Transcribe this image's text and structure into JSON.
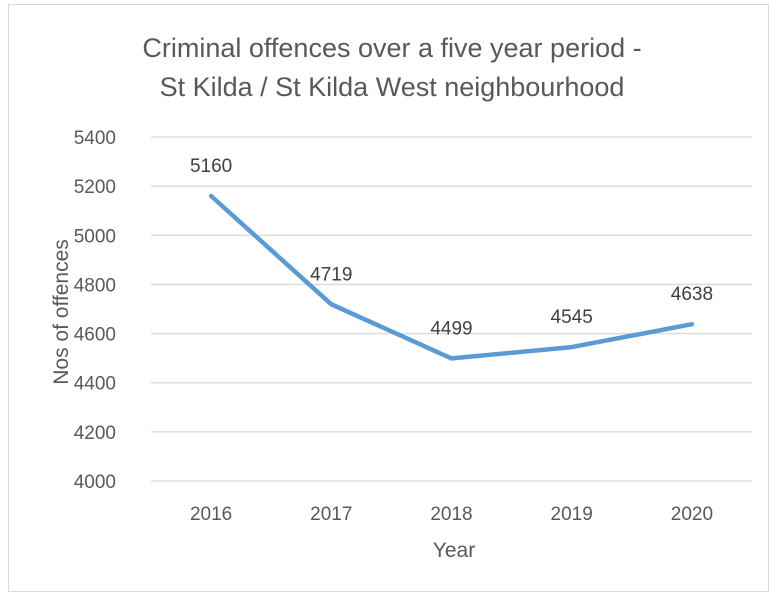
{
  "chart_data": {
    "type": "line",
    "title": "Criminal offences over a five year period - St Kilda / St Kilda West neighbourhood",
    "title_lines": [
      "Criminal offences over a five year period -",
      "St Kilda / St Kilda West neighbourhood"
    ],
    "xlabel": "Year",
    "ylabel": "Nos of offences",
    "categories": [
      "2016",
      "2017",
      "2018",
      "2019",
      "2020"
    ],
    "series": [
      {
        "values": [
          5160,
          4719,
          4499,
          4545,
          4638
        ],
        "color": "#5b9bd5"
      }
    ],
    "ylim": [
      4000,
      5400
    ],
    "y_ticks": [
      4000,
      4200,
      4400,
      4600,
      4800,
      5000,
      5200,
      5400
    ],
    "grid": true,
    "legend": "none",
    "data_labels": true,
    "colors": {
      "line": "#5b9bd5",
      "grid": "#d9d9d9",
      "text": "#595959",
      "data_label": "#404040"
    }
  }
}
